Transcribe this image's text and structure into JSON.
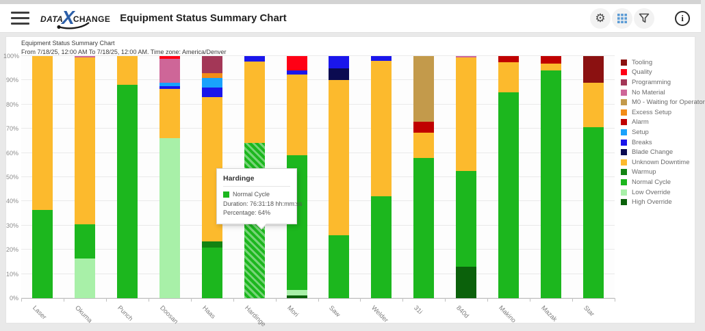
{
  "header": {
    "title": "Equipment Status Summary Chart",
    "logo": {
      "part1": "DATA",
      "part2": "X",
      "part3": "CHANGE",
      "x_color": "#2C5FA8"
    },
    "icons": {
      "menu": "hamburger-icon",
      "settings": "gear-icon",
      "table_view": "table-grid-icon",
      "table_icon_color": "#5B9BD5",
      "filter": "funnel-icon",
      "info": "info-icon",
      "info_glyph": "i",
      "gear_glyph": "⚙"
    }
  },
  "report": {
    "title_line": "Equipment Status Summary Chart",
    "subtitle_line": "From 7/18/25, 12:00 AM To 7/18/25, 12:00 AM. Time zone: America/Denver"
  },
  "tooltip": {
    "title": "Hardinge",
    "series_label": "Normal Cycle",
    "swatch_color": "#1CB71E",
    "duration": "Duration: 76:31:18 hh:mm:ss",
    "percentage": "Percentage: 64%"
  },
  "chart_data": {
    "type": "bar",
    "stacked": true,
    "title": "Equipment Status Summary Chart",
    "xlabel": "",
    "ylabel": "",
    "ylim": [
      0,
      100
    ],
    "grid": true,
    "legend_position": "right",
    "y_ticks": [
      "100%",
      "90%",
      "80%",
      "70%",
      "60%",
      "50%",
      "40%",
      "30%",
      "20%",
      "10%",
      "0%"
    ],
    "categories": [
      "Laser",
      "Okuma",
      "Punch",
      "Doosan",
      "Haas",
      "Hardinge",
      "Mori",
      "Saw",
      "Welder",
      "31i",
      "840d",
      "Makino",
      "Mazak",
      "Star"
    ],
    "highlight": {
      "category": "Hardinge",
      "series": "Normal Cycle"
    },
    "series": [
      {
        "name": "Tooling",
        "color": "#8B1111",
        "values": [
          0,
          0,
          0,
          0,
          0,
          0,
          0,
          0,
          0,
          0,
          0,
          0,
          0,
          11
        ]
      },
      {
        "name": "Quality",
        "color": "#FF0015",
        "values": [
          0,
          0,
          0,
          1,
          0,
          0,
          6,
          0,
          0,
          0,
          0,
          0,
          0,
          0
        ]
      },
      {
        "name": "Programming",
        "color": "#A33757",
        "values": [
          0,
          0,
          0,
          0,
          7,
          0,
          0,
          0,
          0,
          0,
          0,
          0,
          0,
          0
        ]
      },
      {
        "name": "No Material",
        "color": "#CE6698",
        "values": [
          0,
          0.5,
          0,
          10,
          0,
          0,
          0,
          0,
          0,
          0,
          0.7,
          0,
          0,
          0
        ]
      },
      {
        "name": "M0 - Waiting for Operator",
        "color": "#C39A4B",
        "values": [
          0,
          0,
          0,
          0,
          0,
          0,
          0,
          0,
          0,
          27,
          0,
          0,
          0,
          0
        ]
      },
      {
        "name": "Excess Setup",
        "color": "#F28C17",
        "values": [
          0,
          0,
          0,
          0,
          2,
          0,
          0,
          0,
          0,
          0,
          0,
          0,
          0,
          0
        ]
      },
      {
        "name": "Alarm",
        "color": "#C00000",
        "values": [
          0,
          0,
          0,
          0,
          0,
          0,
          0,
          0,
          0,
          4.5,
          0,
          2.5,
          3,
          0
        ]
      },
      {
        "name": "Setup",
        "color": "#19A2FC",
        "values": [
          0,
          0,
          0,
          1.5,
          4,
          0,
          0,
          0,
          0,
          0,
          0,
          0,
          0,
          0
        ]
      },
      {
        "name": "Breaks",
        "color": "#1A16EB",
        "values": [
          0,
          0,
          0,
          1,
          4,
          2.2,
          1.5,
          5,
          2,
          0,
          0,
          0,
          0,
          0
        ]
      },
      {
        "name": "Blade Change",
        "color": "#0B0B51",
        "values": [
          0,
          0,
          0,
          0,
          0,
          0,
          0,
          5,
          0,
          0,
          0,
          0,
          0,
          0
        ]
      },
      {
        "name": "Unknown Downtime",
        "color": "#FCBA2D",
        "values": [
          63.5,
          69,
          12,
          20.5,
          59.5,
          33.8,
          33.5,
          64,
          56,
          10.5,
          46.8,
          12.5,
          3,
          18.5
        ]
      },
      {
        "name": "Warmup",
        "color": "#128312",
        "values": [
          0,
          0,
          0,
          0,
          2.5,
          0,
          0,
          0,
          0,
          0,
          0,
          0,
          0,
          0
        ]
      },
      {
        "name": "Normal Cycle",
        "color": "#1CB71E",
        "values": [
          36.5,
          14,
          88,
          0,
          21,
          64,
          55.5,
          26,
          42,
          58,
          39.5,
          85,
          94,
          70.5
        ]
      },
      {
        "name": "Low Override",
        "color": "#A8F0A8",
        "values": [
          0,
          16.5,
          0,
          66,
          0,
          0,
          2.3,
          0,
          0,
          0,
          0,
          0,
          0,
          0
        ]
      },
      {
        "name": "High Override",
        "color": "#0B610B",
        "values": [
          0,
          0,
          0,
          0,
          0,
          0,
          1.2,
          0,
          0,
          0,
          13,
          0,
          0,
          0
        ]
      }
    ]
  }
}
